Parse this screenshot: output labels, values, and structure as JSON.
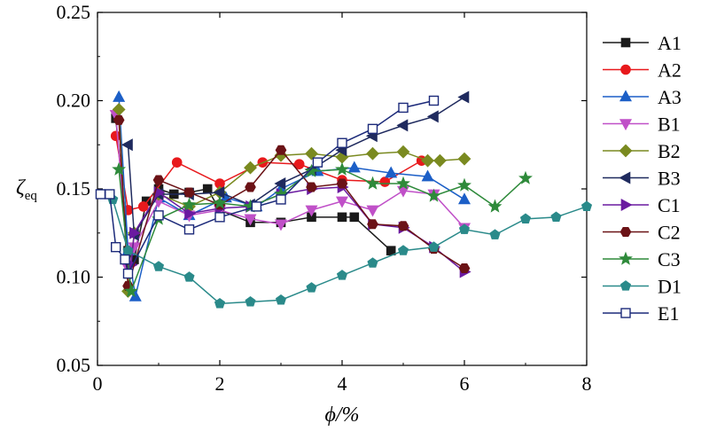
{
  "chart_data": {
    "type": "line",
    "title": "",
    "xlabel": "ϕ/%",
    "ylabel": "ζ",
    "ylabel_sub": "eq",
    "xlim": [
      0,
      8
    ],
    "ylim": [
      0.05,
      0.25
    ],
    "xticks": [
      0,
      2,
      4,
      6,
      8
    ],
    "yticks": [
      0.05,
      0.1,
      0.15,
      0.2,
      0.25
    ],
    "xtick_labels": [
      "0",
      "2",
      "4",
      "6",
      "8"
    ],
    "ytick_labels": [
      "0.05",
      "0.10",
      "0.15",
      "0.20",
      "0.25"
    ],
    "grid": false,
    "legend_position": "right",
    "series": [
      {
        "name": "A1",
        "color": "#1a1a1a",
        "marker": "square-filled",
        "x": [
          0.3,
          0.5,
          0.6,
          0.8,
          1.0,
          1.25,
          1.5,
          1.8,
          2.0,
          2.5,
          3.0,
          3.5,
          4.0,
          4.2,
          4.8
        ],
        "y": [
          0.19,
          0.115,
          0.11,
          0.143,
          0.15,
          0.147,
          0.148,
          0.15,
          0.138,
          0.131,
          0.131,
          0.134,
          0.134,
          0.134,
          0.115
        ]
      },
      {
        "name": "A2",
        "color": "#e8191c",
        "marker": "circle-filled",
        "x": [
          0.3,
          0.5,
          0.75,
          1.3,
          2.0,
          2.7,
          3.3,
          4.0,
          4.7,
          5.3
        ],
        "y": [
          0.18,
          0.138,
          0.14,
          0.165,
          0.153,
          0.165,
          0.164,
          0.155,
          0.154,
          0.166
        ]
      },
      {
        "name": "A3",
        "color": "#1c5fc7",
        "marker": "triangle-up-filled",
        "x": [
          0.35,
          0.5,
          0.62,
          1.0,
          1.5,
          2.1,
          2.6,
          3.0,
          3.6,
          4.2,
          4.8,
          5.4,
          6.0
        ],
        "y": [
          0.202,
          0.115,
          0.089,
          0.145,
          0.135,
          0.145,
          0.14,
          0.15,
          0.16,
          0.162,
          0.159,
          0.157,
          0.144
        ]
      },
      {
        "name": "B1",
        "color": "#c050c8",
        "marker": "triangle-down-filled",
        "x": [
          0.3,
          0.5,
          0.6,
          1.0,
          1.5,
          2.0,
          2.5,
          3.0,
          3.5,
          4.0,
          4.5,
          5.0,
          5.5,
          6.0
        ],
        "y": [
          0.192,
          0.105,
          0.117,
          0.143,
          0.135,
          0.138,
          0.133,
          0.13,
          0.138,
          0.143,
          0.138,
          0.149,
          0.147,
          0.128
        ]
      },
      {
        "name": "B2",
        "color": "#7a8a20",
        "marker": "diamond-filled",
        "x": [
          0.35,
          0.5,
          0.6,
          1.0,
          1.5,
          2.0,
          2.5,
          3.0,
          3.5,
          4.0,
          4.5,
          5.0,
          5.4,
          5.6,
          6.0
        ],
        "y": [
          0.195,
          0.092,
          0.125,
          0.147,
          0.14,
          0.148,
          0.162,
          0.169,
          0.17,
          0.168,
          0.17,
          0.171,
          0.166,
          0.166,
          0.167
        ]
      },
      {
        "name": "B3",
        "color": "#1f2a5e",
        "marker": "triangle-left-filled",
        "x": [
          0.5,
          0.6,
          1.0,
          1.5,
          2.0,
          2.5,
          3.0,
          3.5,
          4.0,
          4.5,
          5.0,
          5.5,
          6.0
        ],
        "y": [
          0.175,
          0.124,
          0.147,
          0.147,
          0.148,
          0.141,
          0.153,
          0.161,
          0.172,
          0.18,
          0.186,
          0.191,
          0.202
        ]
      },
      {
        "name": "C1",
        "color": "#6a1aa0",
        "marker": "triangle-right-filled",
        "x": [
          0.55,
          0.6,
          1.0,
          1.5,
          2.0,
          2.5,
          3.0,
          3.5,
          4.0,
          4.5,
          5.0,
          5.5,
          6.0
        ],
        "y": [
          0.107,
          0.125,
          0.148,
          0.136,
          0.139,
          0.14,
          0.147,
          0.15,
          0.151,
          0.13,
          0.128,
          0.117,
          0.103
        ]
      },
      {
        "name": "C2",
        "color": "#6b1216",
        "marker": "hexagon-filled",
        "x": [
          0.35,
          0.5,
          1.0,
          1.5,
          2.0,
          2.5,
          3.0,
          3.5,
          4.0,
          4.5,
          5.0,
          5.5,
          6.0
        ],
        "y": [
          0.189,
          0.095,
          0.155,
          0.148,
          0.141,
          0.151,
          0.172,
          0.151,
          0.153,
          0.13,
          0.129,
          0.116,
          0.105
        ]
      },
      {
        "name": "C3",
        "color": "#2e8a3a",
        "marker": "star-filled",
        "x": [
          0.35,
          0.55,
          1.0,
          1.5,
          2.0,
          2.5,
          3.0,
          3.5,
          4.0,
          4.5,
          5.0,
          5.5,
          6.0,
          6.5,
          7.0
        ],
        "y": [
          0.161,
          0.092,
          0.133,
          0.141,
          0.142,
          0.14,
          0.147,
          0.16,
          0.161,
          0.153,
          0.153,
          0.146,
          0.152,
          0.14,
          0.156
        ]
      },
      {
        "name": "D1",
        "color": "#2a8a8a",
        "marker": "pentagon-filled",
        "x": [
          0.25,
          0.5,
          1.0,
          1.5,
          2.0,
          2.5,
          3.0,
          3.5,
          4.0,
          4.5,
          5.0,
          5.5,
          6.0,
          6.5,
          7.0,
          7.5,
          8.0
        ],
        "y": [
          0.144,
          0.115,
          0.106,
          0.1,
          0.085,
          0.086,
          0.087,
          0.094,
          0.101,
          0.108,
          0.115,
          0.117,
          0.127,
          0.124,
          0.133,
          0.134,
          0.14
        ]
      },
      {
        "name": "E1",
        "color": "#1c2a7a",
        "marker": "square-open",
        "x": [
          0.05,
          0.2,
          0.3,
          0.45,
          0.5,
          1.0,
          1.5,
          2.0,
          2.6,
          3.0,
          3.6,
          4.0,
          4.5,
          5.0,
          5.5
        ],
        "y": [
          0.147,
          0.147,
          0.117,
          0.11,
          0.102,
          0.135,
          0.127,
          0.134,
          0.14,
          0.144,
          0.165,
          0.176,
          0.184,
          0.196,
          0.2
        ]
      }
    ]
  }
}
